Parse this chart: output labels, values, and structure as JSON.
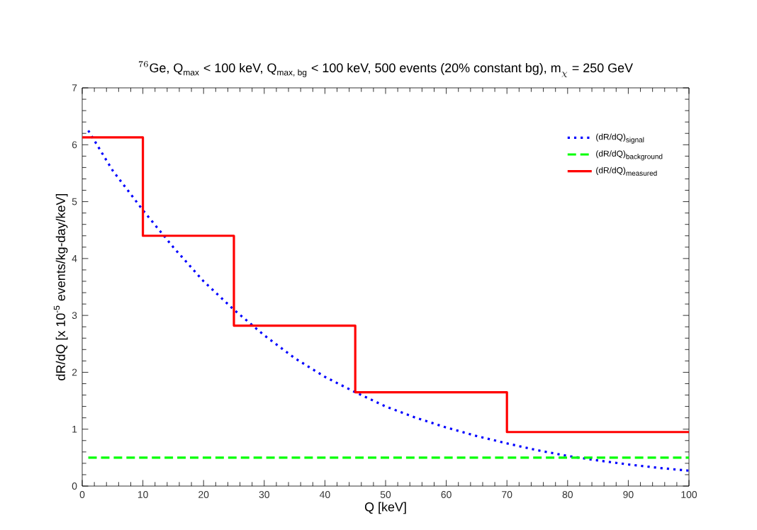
{
  "chart_data": {
    "type": "line",
    "title": "^{76}\\text{Ge, Q}_{\\text{max}}\\text{ < 100 keV, Q}_{\\text{max, bg}}\\text{ < 100 keV, 500 events (20\\% constant bg), m}_{\\chi}\\text{ = 250 GeV}",
    "xlabel": "Q [keV]",
    "ylabel": "dR/dQ [x 10$^{-5}$ events/kg-day/keV]",
    "xlim": [
      0,
      100
    ],
    "ylim": [
      0,
      7
    ],
    "xticks": [
      0,
      10,
      20,
      30,
      40,
      50,
      60,
      70,
      80,
      90,
      100
    ],
    "yticks": [
      0,
      1,
      2,
      3,
      4,
      5,
      6,
      7
    ],
    "grid": false,
    "legend": "top right",
    "series": [
      {
        "name": "\\text{(dR/dQ)}_{\\text{signal}}",
        "line_style": "dotted",
        "color": "#0000ff",
        "x": [
          1,
          5,
          10,
          15,
          20,
          25,
          30,
          35,
          40,
          45,
          50,
          55,
          60,
          65,
          70,
          75,
          80,
          85,
          90,
          95,
          100
        ],
        "values": [
          6.25,
          5.55,
          4.85,
          4.2,
          3.6,
          3.1,
          2.65,
          2.25,
          1.92,
          1.65,
          1.4,
          1.2,
          1.03,
          0.88,
          0.75,
          0.63,
          0.53,
          0.45,
          0.38,
          0.32,
          0.27
        ]
      },
      {
        "name": "\\text{(dR/dQ)}_{\\text{background}}",
        "line_style": "dashed",
        "color": "#00ff00",
        "x": [
          1,
          100
        ],
        "values": [
          0.5,
          0.5
        ]
      },
      {
        "name": "\\text{(dR/dQ)}_{\\text{measured}}",
        "type": "step",
        "line_style": "solid",
        "color": "#ff0000",
        "x": [
          0,
          10,
          25,
          45,
          70,
          100
        ],
        "values": [
          6.13,
          4.4,
          2.82,
          1.65,
          0.95,
          0.95
        ]
      }
    ]
  }
}
